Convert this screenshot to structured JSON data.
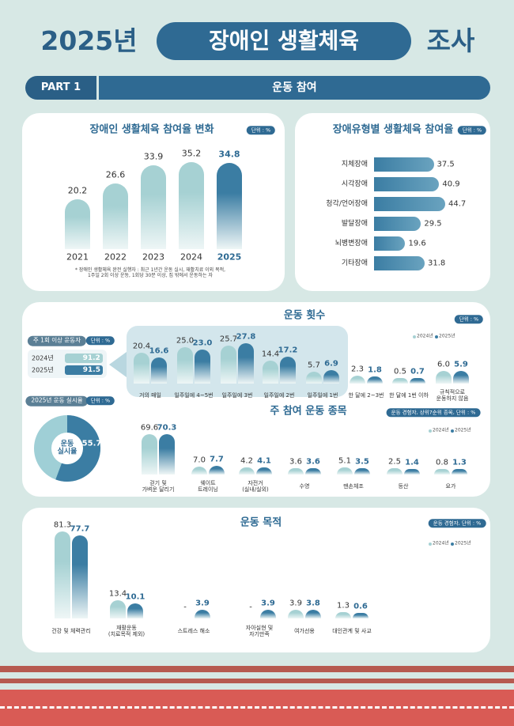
{
  "header": {
    "year": "2025년",
    "title": "장애인 생활체육",
    "suffix": "조사",
    "part": "PART 1",
    "section": "운동 참여"
  },
  "chart_data": [
    {
      "type": "bar",
      "title": "장애인 생활체육 참여율 변화",
      "unit": "단위 : %",
      "categories": [
        "2021",
        "2022",
        "2023",
        "2024",
        "2025"
      ],
      "values": [
        20.2,
        26.6,
        33.9,
        35.2,
        34.8
      ],
      "colors": [
        "#a6d1d3",
        "#a6d1d3",
        "#a6d1d3",
        "#a6d1d3",
        "#3b7da3"
      ],
      "note": "* 장애인 생활체육 완전 실행자 : 최근 1년간 운동 실시, 재활치료 이외 목적,\n1주일 2회 이상 운동, 1회당 30분 이상, 집 밖에서 운동하는 자"
    },
    {
      "type": "hbar",
      "title": "장애유형별 생활체육 참여율",
      "unit": "단위 : %",
      "categories": [
        "지체장애",
        "시각장애",
        "청각/언어장애",
        "발달장애",
        "뇌병변장애",
        "기타장애"
      ],
      "values": [
        37.5,
        40.9,
        44.7,
        29.5,
        19.6,
        31.8
      ],
      "color": "#3b7da3"
    },
    {
      "type": "grouped",
      "title": "운동 횟수",
      "unit": "단위 : %",
      "categories": [
        "거의 매일",
        "일주일에 4~5번",
        "일주일에 3번",
        "일주일에 2번",
        "일주일에 1번",
        "한 달에 2~3번",
        "한 달에 1번 이하",
        "규칙적으로\n운동하지 않음"
      ],
      "series": [
        {
          "name": "2024년",
          "color": "#a6d1d3",
          "values": [
            20.4,
            25.0,
            25.7,
            14.4,
            5.7,
            2.3,
            0.5,
            6.0
          ],
          "value_labels": [
            "20.4",
            "25.0",
            "25.7",
            "14.4",
            "5.7",
            "2.3",
            "0.5",
            "6.0"
          ]
        },
        {
          "name": "2025년",
          "color": "#3b7da3",
          "values": [
            16.6,
            23.0,
            27.8,
            17.2,
            6.9,
            1.8,
            0.7,
            5.9
          ],
          "value_labels": [
            "16.6",
            "23.0",
            "27.8",
            "17.2",
            "6.9",
            "1.8",
            "0.7",
            "5.9"
          ]
        }
      ]
    },
    {
      "type": "mini",
      "title": "주 1회 이상 운동자",
      "unit": "단위 : %",
      "categories": [
        "2024년",
        "2025년"
      ],
      "values": [
        91.2,
        91.5
      ],
      "colors": [
        "#a6d1d3",
        "#3b7da3"
      ]
    },
    {
      "type": "donut",
      "title": "2025년 운동 실시율",
      "unit": "단위 : %",
      "label": "운동\n실시율",
      "values": [
        55.7
      ],
      "colors": [
        "#3b7da3",
        "#9fcfd6"
      ]
    },
    {
      "type": "grouped",
      "title": "주 참여 운동 종목",
      "unit": "운동 경험자, 상위7순위 종목, 단위 : %",
      "categories": [
        "걷기 및\n가벼운 달리기",
        "웨이트\n트레이닝",
        "자전거\n(실내/실외)",
        "수영",
        "맨손체조",
        "등산",
        "요가"
      ],
      "series": [
        {
          "name": "2024년",
          "color": "#a6d1d3",
          "values": [
            69.6,
            7.0,
            4.2,
            3.6,
            5.1,
            2.5,
            0.8
          ],
          "value_labels": [
            "69.6",
            "7.0",
            "4.2",
            "3.6",
            "5.1",
            "2.5",
            "0.8"
          ]
        },
        {
          "name": "2025년",
          "color": "#3b7da3",
          "values": [
            70.3,
            7.7,
            4.1,
            3.6,
            3.5,
            1.4,
            1.3
          ]
        }
      ]
    },
    {
      "type": "grouped",
      "title": "운동 목적",
      "unit": "운동 경험자, 단위 : %",
      "categories": [
        "건강 및 체력관리",
        "재활운동\n(치료목적 제외)",
        "스트레스 해소",
        "자아실현 및\n자기만족",
        "여가선용",
        "대인관계 및 사교"
      ],
      "series": [
        {
          "name": "2024년",
          "color": "#a6d1d3",
          "values": [
            81.3,
            13.4,
            null,
            null,
            3.9,
            1.3
          ],
          "value_labels": [
            "81.3",
            "13.4",
            "-",
            "-",
            "3.9",
            "1.3"
          ]
        },
        {
          "name": "2025년",
          "color": "#3b7da3",
          "values": [
            77.7,
            10.1,
            3.9,
            3.9,
            3.8,
            0.6
          ]
        }
      ]
    }
  ]
}
